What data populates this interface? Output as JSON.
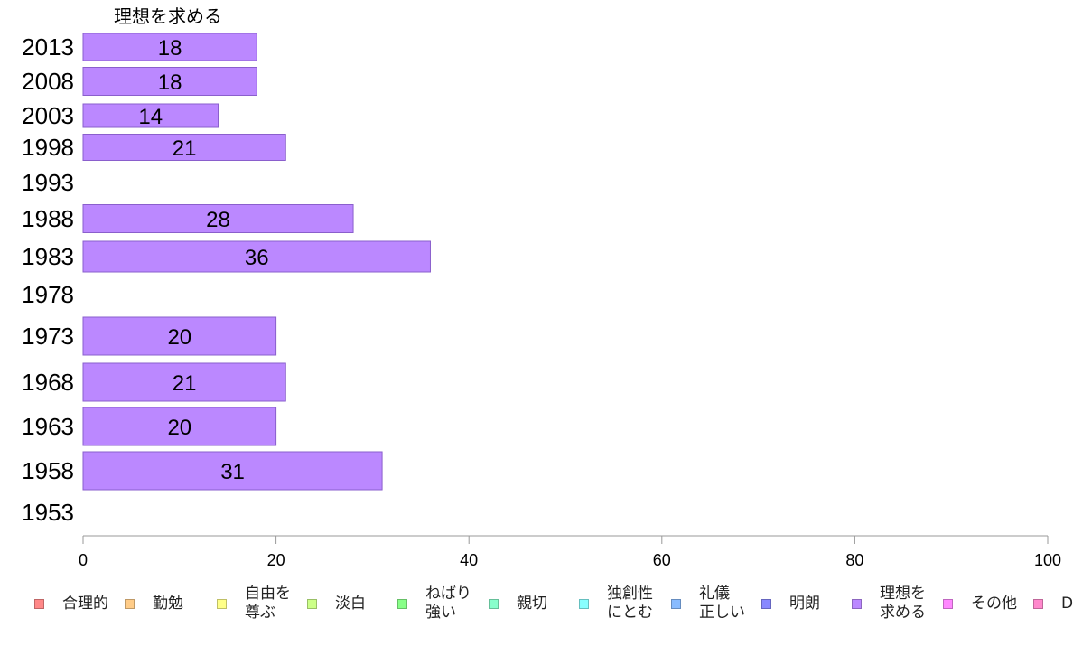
{
  "chart_data": {
    "type": "bar",
    "orientation": "horizontal",
    "title": "理想を求める",
    "categories": [
      "2013",
      "2008",
      "2003",
      "1998",
      "1993",
      "1988",
      "1983",
      "1978",
      "1973",
      "1968",
      "1963",
      "1958",
      "1953"
    ],
    "series": [
      {
        "name": "理想を求める",
        "color": "#bb88ff",
        "values": [
          18,
          18,
          14,
          21,
          null,
          28,
          36,
          null,
          20,
          21,
          20,
          31,
          null
        ]
      }
    ],
    "xlim": [
      0,
      100
    ],
    "xticks": [
      0,
      20,
      40,
      60,
      80,
      100
    ],
    "grid": false,
    "legend_position": "bottom",
    "legend": [
      {
        "label": "合理的",
        "color": "#ff8888"
      },
      {
        "label": "勤勉",
        "color": "#ffcc88"
      },
      {
        "label": "自由を\n尊ぶ",
        "color": "#ffff88"
      },
      {
        "label": "淡白",
        "color": "#ccff88"
      },
      {
        "label": "ねばり\n強い",
        "color": "#88ff88"
      },
      {
        "label": "親切",
        "color": "#88ffcc"
      },
      {
        "label": "独創性\nにとむ",
        "color": "#88ffff"
      },
      {
        "label": "礼儀\n正しい",
        "color": "#88bbff"
      },
      {
        "label": "明朗",
        "color": "#8888ff"
      },
      {
        "label": "理想を\n求める",
        "color": "#bb88ff"
      },
      {
        "label": "その他",
        "color": "#ff88ff"
      },
      {
        "label": "D",
        "color": "#ff88cc"
      }
    ]
  }
}
